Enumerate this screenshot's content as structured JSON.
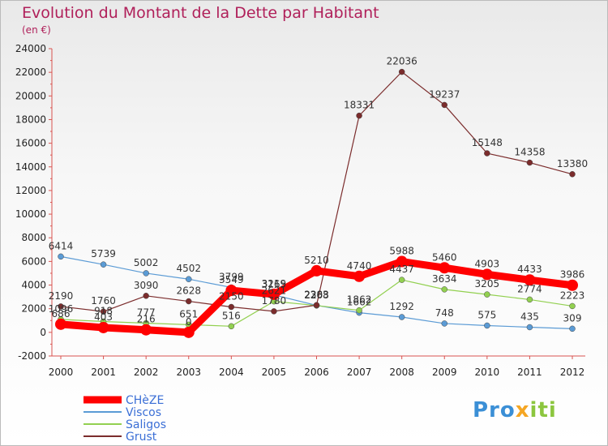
{
  "chart_data": {
    "type": "line",
    "title": "Evolution du Montant de la Dette par Habitant",
    "subtitle": "(en €)",
    "xlabel": "",
    "ylabel": "",
    "x": [
      "2000",
      "2001",
      "2002",
      "2003",
      "2004",
      "2005",
      "2006",
      "2007",
      "2008",
      "2009",
      "2010",
      "2011",
      "2012"
    ],
    "ylim": [
      -2000,
      24000
    ],
    "yticks": [
      -2000,
      0,
      2000,
      4000,
      6000,
      8000,
      10000,
      12000,
      14000,
      16000,
      18000,
      20000,
      22000,
      24000
    ],
    "grid": false,
    "legend_position": "bottom-left",
    "series": [
      {
        "name": "CHèZE",
        "color": "#ff0000",
        "values": [
          686,
          403,
          216,
          0,
          3549,
          3219,
          5210,
          4740,
          5988,
          5460,
          4903,
          4433,
          3986
        ]
      },
      {
        "name": "Viscos",
        "color": "#5b9bd5",
        "values": [
          6414,
          5739,
          5002,
          4502,
          3799,
          3165,
          2283,
          1662,
          1292,
          748,
          575,
          435,
          309
        ]
      },
      {
        "name": "Saligos",
        "color": "#92d050",
        "values": [
          1096,
          918,
          777,
          651,
          516,
          2621,
          2268,
          1862,
          4437,
          3634,
          3205,
          2774,
          2223
        ]
      },
      {
        "name": "Grust",
        "color": "#7b2c2c",
        "values": [
          2190,
          1760,
          3090,
          2628,
          2150,
          1780,
          2303,
          18331,
          22036,
          19237,
          15148,
          14358,
          13380
        ]
      }
    ]
  },
  "brand": {
    "part1": "Pro",
    "part2": "x",
    "part3": "iti"
  }
}
